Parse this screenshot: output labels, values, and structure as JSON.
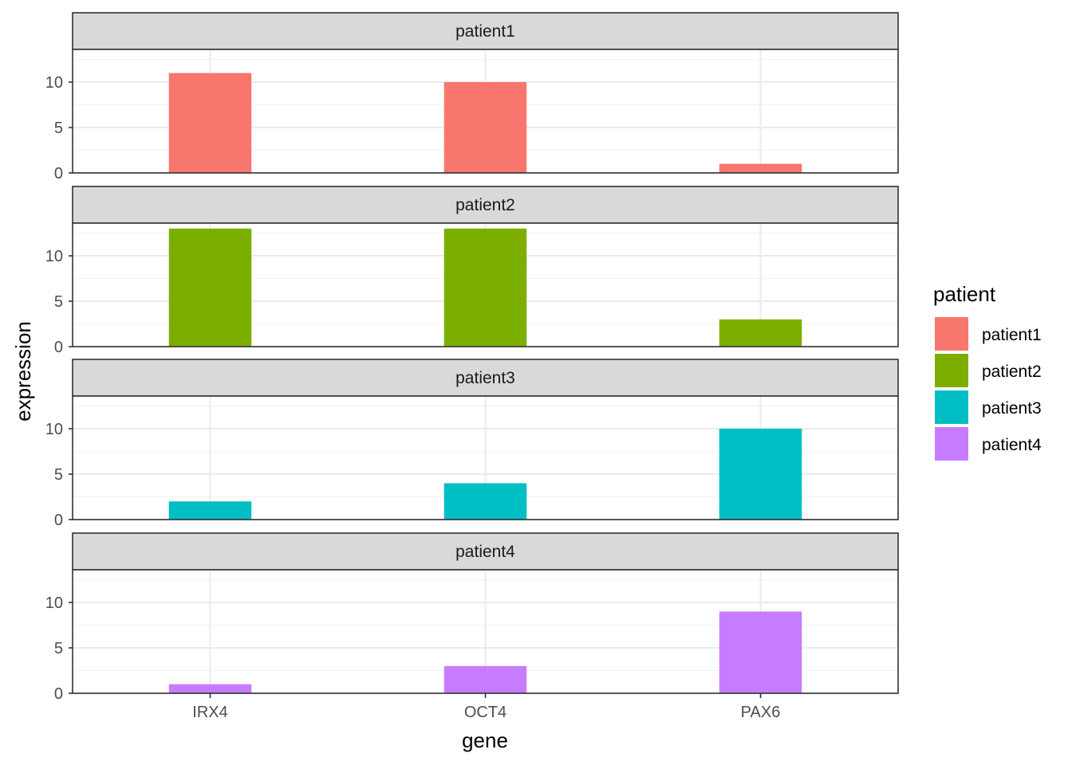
{
  "chart_data": {
    "type": "bar",
    "facet_by": "patient",
    "categories": [
      "IRX4",
      "OCT4",
      "PAX6"
    ],
    "xlabel": "gene",
    "ylabel": "expression",
    "ylim": [
      0,
      13.6
    ],
    "yticks": [
      0,
      5,
      10
    ],
    "ytick_labels": [
      "0",
      "5",
      "10"
    ],
    "grid": true,
    "legend": {
      "title": "patient",
      "position": "right"
    },
    "series": [
      {
        "name": "patient1",
        "color": "#F8766D",
        "values": [
          11,
          10,
          1
        ]
      },
      {
        "name": "patient2",
        "color": "#7CAE00",
        "values": [
          13,
          13,
          3
        ]
      },
      {
        "name": "patient3",
        "color": "#00BFC4",
        "values": [
          2,
          4,
          10
        ]
      },
      {
        "name": "patient4",
        "color": "#C77CFF",
        "values": [
          1,
          3,
          9
        ]
      }
    ]
  }
}
